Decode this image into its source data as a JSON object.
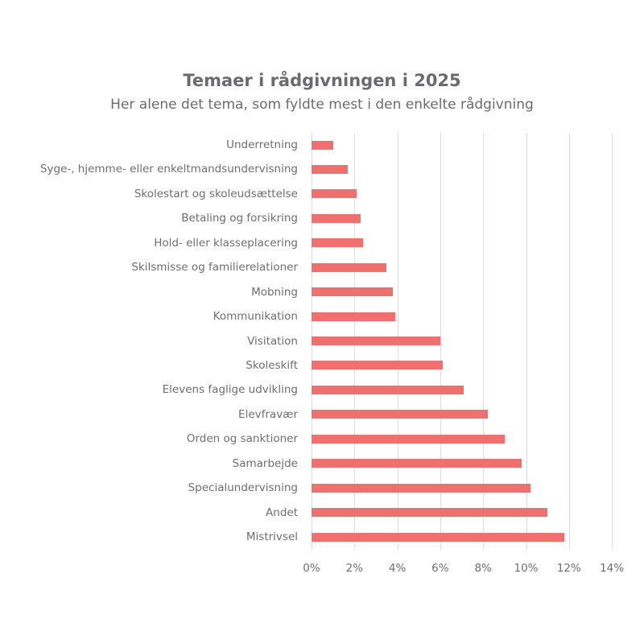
{
  "header": {
    "title": "Temaer i rådgivningen i 2025",
    "subtitle": "Her alene det tema, som fyldte mest i den enkelte rådgivning"
  },
  "colors": {
    "bar": "#F07070",
    "text": "#6b6b6e",
    "grid": "#dcdcdc"
  },
  "chart_data": {
    "type": "bar",
    "orientation": "horizontal",
    "title": "Temaer i rådgivningen i 2025",
    "subtitle": "Her alene det tema, som fyldte mest i den enkelte rådgivning",
    "xlabel": "",
    "ylabel": "",
    "categories": [
      "Underretning",
      "Syge-, hjemme- eller enkeltmandsundervisning",
      "Skolestart og skoleudsættelse",
      "Betaling og forsikring",
      "Hold- eller klasseplacering",
      "Skilsmisse og familierelationer",
      "Mobning",
      "Kommunikation",
      "Visitation",
      "Skoleskift",
      "Elevens faglige udvikling",
      "Elevfravær",
      "Orden og sanktioner",
      "Samarbejde",
      "Specialundervisning",
      "Andet",
      "Mistrivsel"
    ],
    "values": [
      1.0,
      1.7,
      2.1,
      2.3,
      2.4,
      3.5,
      3.8,
      3.9,
      6.0,
      6.1,
      7.1,
      8.2,
      9.0,
      9.8,
      10.2,
      11.0,
      11.8
    ],
    "unit": "%",
    "xlim": [
      0,
      14
    ],
    "x_ticks": [
      "0%",
      "2%",
      "4%",
      "6%",
      "8%",
      "10%",
      "12%",
      "14%"
    ],
    "grid": true,
    "legend": null
  }
}
